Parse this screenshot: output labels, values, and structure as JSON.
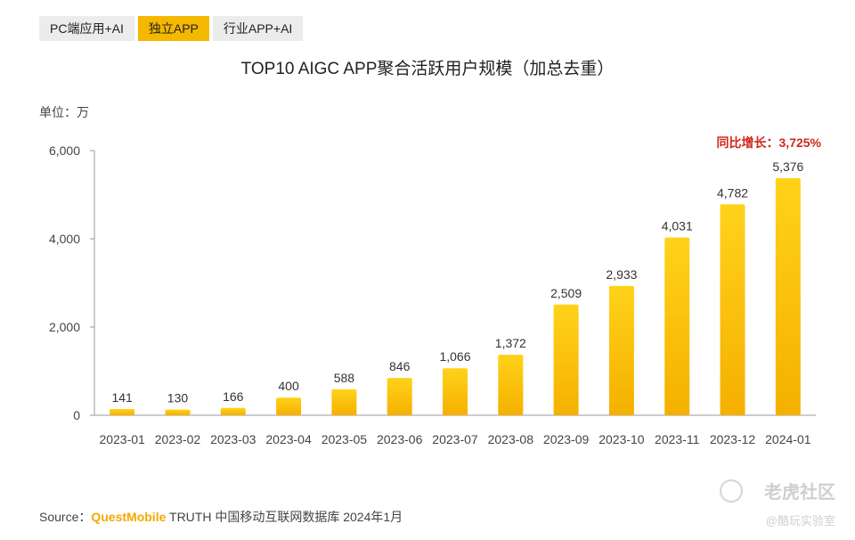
{
  "tabs": [
    {
      "label": "PC端应用+AI",
      "active": false
    },
    {
      "label": "独立APP",
      "active": true
    },
    {
      "label": "行业APP+AI",
      "active": false
    }
  ],
  "unit_label": "单位：万",
  "growth_label": "同比增长：3,725%",
  "source": {
    "prefix": "Source：",
    "brand": "QuestMobile",
    "rest": " TRUTH 中国移动互联网数据库 2024年1月"
  },
  "watermark": {
    "main": "老虎社区",
    "sub": "@酷玩实验室"
  },
  "colors": {
    "bar_top": "#ffd21a",
    "bar_bottom": "#f5b000",
    "accent": "#f5b800",
    "growth": "#d0281c"
  },
  "chart_data": {
    "type": "bar",
    "title": "TOP10 AIGC APP聚合活跃用户规模（加总去重）",
    "categories": [
      "2023-01",
      "2023-02",
      "2023-03",
      "2023-04",
      "2023-05",
      "2023-06",
      "2023-07",
      "2023-08",
      "2023-09",
      "2023-10",
      "2023-11",
      "2023-12",
      "2024-01"
    ],
    "values": [
      141,
      130,
      166,
      400,
      588,
      846,
      1066,
      1372,
      2509,
      2933,
      4031,
      4782,
      5376
    ],
    "value_labels": [
      "141",
      "130",
      "166",
      "400",
      "588",
      "846",
      "1,066",
      "1,372",
      "2,509",
      "2,933",
      "4,031",
      "4,782",
      "5,376"
    ],
    "ylim": [
      0,
      6000
    ],
    "yticks": [
      0,
      2000,
      4000,
      6000
    ],
    "ytick_labels": [
      "0",
      "2,000",
      "4,000",
      "6,000"
    ],
    "grid": false,
    "legend": false
  }
}
